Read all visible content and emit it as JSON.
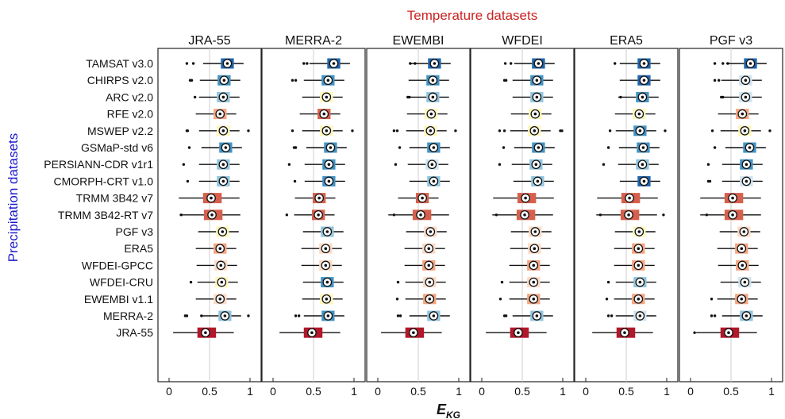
{
  "chart_data": {
    "type": "boxplot",
    "title": "Temperature datasets",
    "xlabel": "E",
    "xlabel_sub": "KG",
    "ylabel": "Precipitation datasets",
    "xlim": [
      0,
      1
    ],
    "xticks": [
      0,
      0.5,
      1
    ],
    "xtick_labels": [
      "0",
      "0.5",
      "1"
    ],
    "grid": false,
    "panels": [
      "JRA-55",
      "MERRA-2",
      "EWEMBI",
      "WFDEI",
      "ERA5",
      "PGF v3"
    ],
    "categories": [
      "TAMSAT v3.0",
      "CHIRPS v2.0",
      "ARC v2.0",
      "RFE v2.0",
      "MSWEP v2.2",
      "GSMaP-std v6",
      "PERSIANN-CDR v1r1",
      "CMORPH-CRT v1.0",
      "TRMM 3B42 v7",
      "TRMM 3B42-RT v7",
      "PGF v3",
      "ERA5",
      "WFDEI-GPCC",
      "WFDEI-CRU",
      "EWEMBI v1.1",
      "MERRA-2",
      "JRA-55"
    ],
    "colorscale": [
      "#b2182b",
      "#d6604d",
      "#f4a582",
      "#fddbc7",
      "#fff7bc",
      "#d1e5f0",
      "#92c5de",
      "#4393c3",
      "#2166ac"
    ],
    "medians": [
      [
        0.72,
        0.75,
        0.7,
        0.7,
        0.72,
        0.74
      ],
      [
        0.68,
        0.68,
        0.68,
        0.68,
        0.72,
        0.68
      ],
      [
        0.67,
        0.66,
        0.68,
        0.68,
        0.7,
        0.68
      ],
      [
        0.63,
        0.63,
        0.66,
        0.66,
        0.66,
        0.64
      ],
      [
        0.67,
        0.66,
        0.65,
        0.65,
        0.67,
        0.67
      ],
      [
        0.7,
        0.71,
        0.69,
        0.7,
        0.71,
        0.73
      ],
      [
        0.67,
        0.69,
        0.67,
        0.67,
        0.7,
        0.69
      ],
      [
        0.67,
        0.69,
        0.69,
        0.69,
        0.72,
        0.69
      ],
      [
        0.52,
        0.57,
        0.55,
        0.54,
        0.54,
        0.52
      ],
      [
        0.53,
        0.56,
        0.53,
        0.53,
        0.53,
        0.52
      ],
      [
        0.66,
        0.67,
        0.65,
        0.66,
        0.66,
        0.66
      ],
      [
        0.63,
        0.65,
        0.63,
        0.65,
        0.65,
        0.63
      ],
      [
        0.64,
        0.65,
        0.63,
        0.64,
        0.65,
        0.64
      ],
      [
        0.65,
        0.67,
        0.64,
        0.64,
        0.67,
        0.67
      ],
      [
        0.63,
        0.66,
        0.64,
        0.64,
        0.65,
        0.63
      ],
      [
        0.69,
        0.68,
        0.69,
        0.68,
        0.67,
        0.69
      ],
      [
        0.45,
        0.48,
        0.44,
        0.45,
        0.48,
        0.47
      ]
    ],
    "color_index": [
      [
        8,
        8,
        8,
        8,
        8,
        8
      ],
      [
        7,
        7,
        7,
        7,
        8,
        5
      ],
      [
        6,
        4,
        6,
        6,
        7,
        5
      ],
      [
        2,
        1,
        4,
        4,
        4,
        2
      ],
      [
        4,
        4,
        4,
        4,
        7,
        4
      ],
      [
        7,
        7,
        7,
        7,
        7,
        7
      ],
      [
        6,
        7,
        5,
        6,
        6,
        7
      ],
      [
        6,
        7,
        6,
        6,
        8,
        5
      ],
      [
        1,
        1,
        1,
        1,
        1,
        1
      ],
      [
        1,
        1,
        1,
        1,
        1,
        1
      ],
      [
        4,
        6,
        3,
        3,
        4,
        3
      ],
      [
        2,
        3,
        3,
        3,
        2,
        2
      ],
      [
        3,
        3,
        2,
        2,
        2,
        2
      ],
      [
        4,
        7,
        3,
        3,
        6,
        5
      ],
      [
        3,
        4,
        2,
        2,
        2,
        2
      ],
      [
        6,
        7,
        6,
        6,
        5,
        6
      ],
      [
        0,
        0,
        0,
        0,
        0,
        0
      ]
    ],
    "outliers": [
      [
        [
          0.22,
          0.3
        ],
        [
          0.38,
          0.42
        ],
        [
          0.4,
          0.46
        ],
        [
          0.29,
          0.36
        ],
        [
          0.36
        ],
        [
          0.3,
          0.4,
          0.46
        ]
      ],
      [
        [
          0.26,
          0.28
        ],
        [
          0.24,
          0.28
        ],
        [],
        [
          0.28,
          0.3
        ],
        [],
        [
          0.3,
          0.35
        ]
      ],
      [
        [
          0.32
        ],
        [],
        [
          0.37,
          0.39
        ],
        [],
        [
          0.43
        ],
        [
          0.38,
          0.4
        ]
      ],
      [
        [],
        [],
        [],
        [],
        [],
        []
      ],
      [
        [
          0.22,
          0.23,
          0.98
        ],
        [
          0.24,
          0.98
        ],
        [
          0.2,
          0.24,
          0.96
        ],
        [
          0.22,
          0.28,
          0.97,
          0.99
        ],
        [
          0.3,
          0.98
        ],
        [
          0.27,
          0.98
        ]
      ],
      [
        [
          0.25
        ],
        [
          0.26,
          0.28
        ],
        [
          0.27
        ],
        [
          0.27
        ],
        [
          0.28
        ],
        [
          0.3
        ]
      ],
      [
        [
          0.18
        ],
        [
          0.2
        ],
        [
          0.22
        ],
        [
          0.22
        ],
        [
          0.22
        ],
        [
          0.22
        ]
      ],
      [
        [
          0.23
        ],
        [
          0.27
        ],
        [],
        [],
        [],
        [
          0.22,
          0.24
        ]
      ],
      [
        [],
        [],
        [],
        [],
        [],
        []
      ],
      [
        [
          0.15
        ],
        [
          0.17
        ],
        [
          0.2
        ],
        [
          0.18
        ],
        [
          0.18,
          0.96
        ],
        [
          0.2
        ]
      ],
      [
        [],
        [],
        [],
        [],
        [],
        []
      ],
      [
        [],
        [],
        [],
        [],
        [],
        []
      ],
      [
        [],
        [],
        [],
        [],
        [],
        []
      ],
      [
        [
          0.27
        ],
        [],
        [
          0.25
        ],
        [
          0.25
        ],
        [
          0.28
        ],
        []
      ],
      [
        [],
        [],
        [
          0.24
        ],
        [
          0.23
        ],
        [
          0.26
        ],
        [
          0.26
        ]
      ],
      [
        [
          0.2,
          0.22,
          0.4,
          0.98
        ],
        [
          0.28,
          0.32
        ],
        [
          0.25,
          0.28
        ],
        [
          0.28,
          0.3
        ],
        [
          0.28,
          0.32
        ],
        [
          0.26,
          0.3
        ]
      ],
      [
        [],
        [],
        [],
        [],
        [],
        [
          0.05
        ]
      ]
    ]
  }
}
